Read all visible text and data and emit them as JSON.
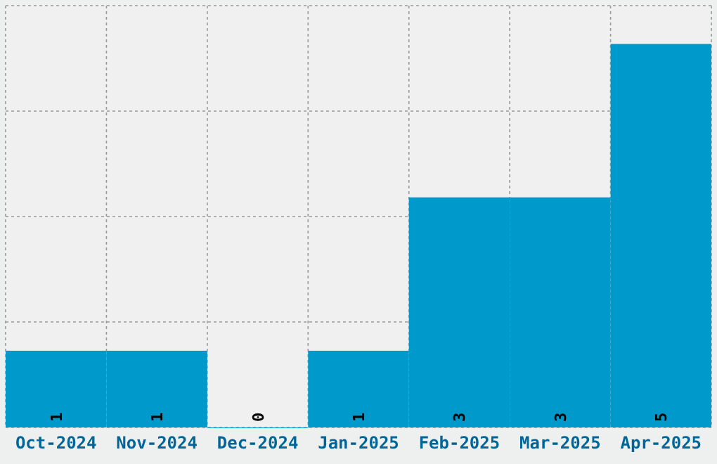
{
  "chart_data": {
    "type": "bar",
    "categories": [
      "Oct-2024",
      "Nov-2024",
      "Dec-2024",
      "Jan-2025",
      "Feb-2025",
      "Mar-2025",
      "Apr-2025"
    ],
    "values": [
      1,
      1,
      0,
      1,
      3,
      3,
      5
    ],
    "color": "#0099cc",
    "ylim": [
      0,
      5.5
    ],
    "yticks": [
      {
        "value": 0,
        "label": null
      },
      {
        "value": 1.375,
        "label": null
      },
      {
        "value": 2.75,
        "label": null
      },
      {
        "value": 4.125,
        "label": null
      },
      {
        "value": 5.5,
        "label": null
      }
    ],
    "tick_labels": "x",
    "grid": true,
    "data_labels": true
  }
}
